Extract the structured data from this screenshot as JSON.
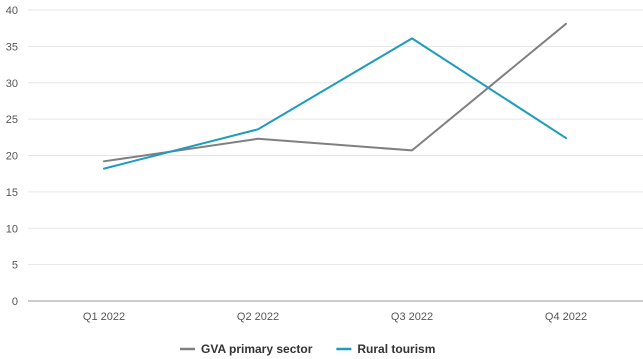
{
  "chart_data": {
    "type": "line",
    "title": "",
    "xlabel": "",
    "ylabel": "",
    "categories": [
      "Q1 2022",
      "Q2 2022",
      "Q3 2022",
      "Q4 2022"
    ],
    "ylim": [
      0,
      40
    ],
    "yticks": [
      0,
      5,
      10,
      15,
      20,
      25,
      30,
      35,
      40
    ],
    "grid": true,
    "legend_position": "bottom",
    "series": [
      {
        "name": "GVA primary sector",
        "color": "#808080",
        "values": [
          19.2,
          22.3,
          20.7,
          38.1
        ]
      },
      {
        "name": "Rural tourism",
        "color": "#1f9bbd",
        "values": [
          18.2,
          23.6,
          36.1,
          22.4
        ]
      }
    ]
  }
}
